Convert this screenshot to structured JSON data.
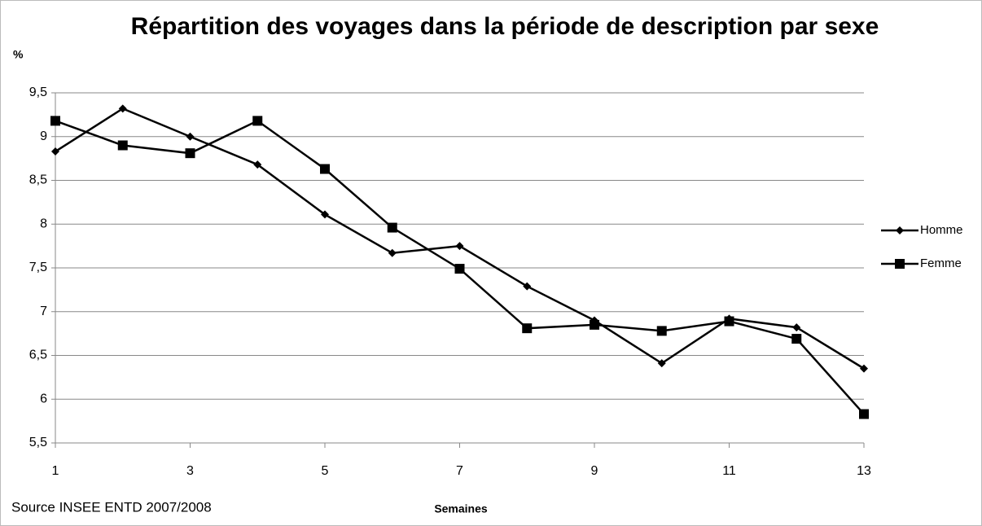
{
  "chart_data": {
    "type": "line",
    "title": "Répartition des voyages dans la période de description par sexe",
    "ylabel": "%",
    "xlabel": "Semaines",
    "source": "Source INSEE ENTD 2007/2008",
    "x": [
      1,
      2,
      3,
      4,
      5,
      6,
      7,
      8,
      9,
      10,
      11,
      12,
      13
    ],
    "series": [
      {
        "name": "Homme",
        "color": "#000000",
        "marker": "diamond",
        "values": [
          8.83,
          9.32,
          9.0,
          8.68,
          8.11,
          7.67,
          7.75,
          7.29,
          6.9,
          6.41,
          6.92,
          6.82,
          6.35
        ]
      },
      {
        "name": "Femme",
        "color": "#000000",
        "marker": "square",
        "values": [
          9.18,
          8.9,
          8.81,
          9.18,
          8.63,
          7.96,
          7.49,
          6.81,
          6.85,
          6.78,
          6.89,
          6.69,
          5.83
        ]
      }
    ],
    "xlim": [
      1,
      13
    ],
    "xticks": [
      1,
      3,
      5,
      7,
      9,
      11,
      13
    ],
    "ylim": [
      5.5,
      9.5
    ],
    "yticks": [
      {
        "value": 5.5,
        "label": "5,5"
      },
      6,
      {
        "value": 6.5,
        "label": "6,5"
      },
      7,
      {
        "value": 7.5,
        "label": "7,5"
      },
      8,
      {
        "value": 8.5,
        "label": "8,5"
      },
      9,
      {
        "value": 9.5,
        "label": "9,5"
      }
    ],
    "grid": true,
    "legend": "right"
  }
}
